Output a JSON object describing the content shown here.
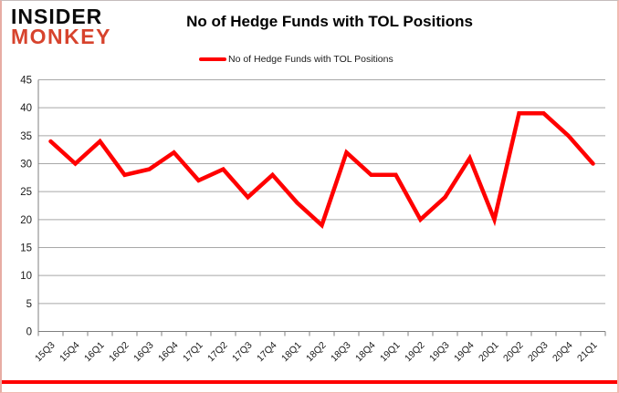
{
  "logo": {
    "line1": "INSIDER",
    "line2": "MONKEY"
  },
  "header": {
    "title": "No of Hedge Funds with TOL Positions"
  },
  "legend": {
    "label": "No of Hedge Funds with TOL Positions"
  },
  "chart_data": {
    "type": "line",
    "title": "No of Hedge Funds with TOL Positions",
    "categories": [
      "15Q3",
      "15Q4",
      "16Q1",
      "16Q2",
      "16Q3",
      "16Q4",
      "17Q1",
      "17Q2",
      "17Q3",
      "17Q4",
      "18Q1",
      "18Q2",
      "18Q3",
      "18Q4",
      "19Q1",
      "19Q2",
      "19Q3",
      "19Q4",
      "20Q1",
      "20Q2",
      "20Q3",
      "20Q4",
      "21Q1"
    ],
    "series": [
      {
        "name": "No of Hedge Funds with TOL Positions",
        "color": "#FF0000",
        "values": [
          34,
          30,
          34,
          28,
          29,
          32,
          27,
          29,
          24,
          28,
          23,
          19,
          32,
          28,
          28,
          20,
          24,
          31,
          20,
          39,
          39,
          35,
          30
        ]
      }
    ],
    "xlabel": "",
    "ylabel": "",
    "ylim": [
      0,
      45
    ],
    "ytick_step": 5,
    "grid": true,
    "legend_position": "top"
  },
  "colors": {
    "line": "#FF0000",
    "logo_red": "#D7432D",
    "grid": "#A8A8A8",
    "axis": "#7F7F7F",
    "text": "#1A1A1A"
  }
}
